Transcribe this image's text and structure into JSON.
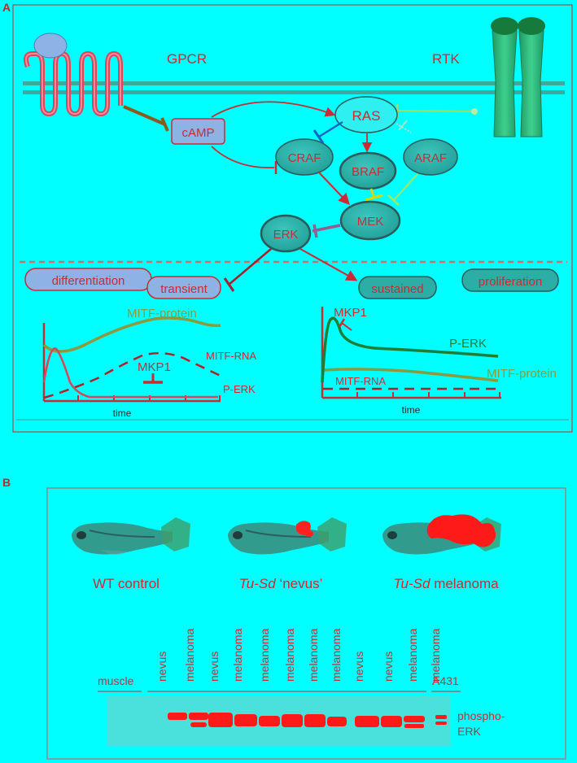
{
  "colors": {
    "background": "#00ffff",
    "red": "#cc2a34",
    "dark_red": "#b0202a",
    "node_fill": "#2aaea6",
    "node_stroke": "#2a5a5a",
    "olive": "#8c9a3e",
    "green": "#1e7e34",
    "rtk": "#27b07c",
    "blue_bar": "#1464c8",
    "yellow_bar": "#d7d80a",
    "brown_bar": "#8b5a1e",
    "purple_bar": "#9a5a8e",
    "lavender": "#8db3e4",
    "band_red": "#ff1a1a"
  },
  "panelA": {
    "letter": "A",
    "receptors": {
      "gpcr": "GPCR",
      "rtk": "RTK"
    },
    "nodes": {
      "camp": "cAMP",
      "ras": "RAS",
      "craf": "CRAF",
      "braf": "BRAF",
      "araf": "ARAF",
      "mek": "MEK",
      "erk": "ERK"
    },
    "outcomes": {
      "differentiation": "differentiation",
      "transient": "transient",
      "sustained": "sustained",
      "proliferation": "proliferation"
    },
    "left_graph": {
      "mitf_protein": "MITF-protein",
      "mitf_rna": "MITF-RNA",
      "mkp1": "MKP1",
      "p_erk": "P-ERK",
      "x_axis": "time"
    },
    "right_graph": {
      "mkp1": "MKP1",
      "p_erk": "P-ERK",
      "mitf_rna": "MITF-RNA",
      "mitf_protein": "MITF-protein",
      "x_axis": "time"
    }
  },
  "panelB": {
    "letter": "B",
    "fish": [
      {
        "italic": "",
        "label": "WT control"
      },
      {
        "italic": "Tu-Sd",
        "label": " ‘nevus’"
      },
      {
        "italic": "Tu-Sd",
        "label": " melanoma"
      }
    ],
    "blot": {
      "muscle_label": "muscle",
      "a431_label": "A431",
      "lanes": [
        "nevus",
        "melanoma",
        "nevus",
        "melanoma",
        "melanoma",
        "melanoma",
        "melanoma",
        "melanoma",
        "nevus",
        "nevus",
        "melanoma",
        "melanoma"
      ],
      "band_label_1": "phospho-",
      "band_label_2": "ERK"
    }
  }
}
